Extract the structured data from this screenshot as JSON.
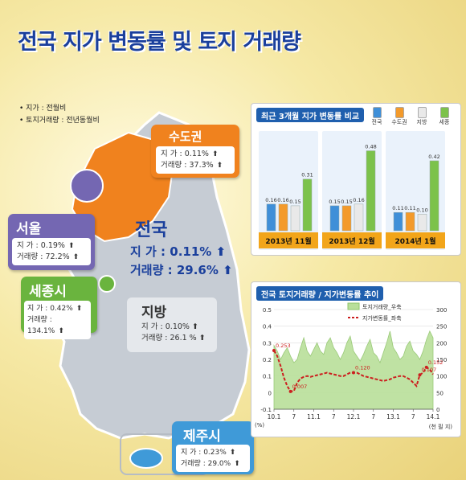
{
  "title": "전국 지가 변동률 및 토지 거래량",
  "notes": [
    "지가 : 전월비",
    "토지거래량 : 전년동월비"
  ],
  "regions": {
    "sudogwon": {
      "name": "수도권",
      "price_label": "지 가",
      "price": "0.11%",
      "volume_label": "거래량",
      "volume": "37.3%"
    },
    "seoul": {
      "name": "서울",
      "price_label": "지 가",
      "price": "0.19%",
      "volume_label": "거래량",
      "volume": "72.2%"
    },
    "sejong": {
      "name": "세종시",
      "price_label": "지 가",
      "price": "0.42%",
      "volume_label": "거래량",
      "volume": "134.1%"
    },
    "national": {
      "name": "전국",
      "price_label": "지 가",
      "price": "0.11%",
      "volume_label": "거래량",
      "volume": "29.6%"
    },
    "jibang": {
      "name": "지방",
      "price_label": "지 가",
      "price": "0.10%",
      "volume_label": "거래량",
      "volume": "26.1 %"
    },
    "jeju": {
      "name": "제주시",
      "price_label": "지 가",
      "price": "0.23%",
      "volume_label": "거래량",
      "volume": "29.0%"
    }
  },
  "arrow": "⬆",
  "colors": {
    "orange": "#f0821e",
    "purple": "#7467b2",
    "green": "#6ab43e",
    "blue": "#3f9ad8",
    "navy": "#1f5fae",
    "red": "#cc1f1f"
  },
  "chart_data": [
    {
      "type": "bar",
      "title": "최근 3개월 지가 변동률 비교",
      "categories": [
        "2013년 11월",
        "2013년 12월",
        "2014년 1월"
      ],
      "series": [
        {
          "name": "전국",
          "values": [
            0.16,
            0.15,
            0.11
          ],
          "color": "#3f8fd8"
        },
        {
          "name": "수도권",
          "values": [
            0.16,
            0.15,
            0.11
          ],
          "color": "#f39a2b"
        },
        {
          "name": "지방",
          "values": [
            0.15,
            0.16,
            0.1
          ],
          "color": "#e9e9e9"
        },
        {
          "name": "세종",
          "values": [
            0.31,
            0.48,
            0.42
          ],
          "color": "#7cc24b"
        }
      ],
      "value_labels": [
        [
          "0.16",
          "0.16",
          "0.15",
          "0.31"
        ],
        [
          "0.15",
          "0.15",
          "0.16",
          "0.48"
        ],
        [
          "0.11",
          "0.11",
          "0.10",
          "0.42"
        ]
      ],
      "ylim": [
        0,
        0.55
      ]
    },
    {
      "type": "line",
      "title": "전국 토지거래량 / 지가변동률 추이",
      "x_tick_labels": [
        "10.1",
        "7",
        "11.1",
        "7",
        "12.1",
        "7",
        "13.1",
        "7",
        "14.1"
      ],
      "x_unit": "(천 필 지)",
      "y_left": {
        "unit": "(%)",
        "ticks": [
          "0.5",
          "0.4",
          "0.3",
          "0.2",
          "0.1",
          "0",
          "-0.1"
        ],
        "lim": [
          -0.1,
          0.5
        ]
      },
      "y_right": {
        "ticks": [
          "300",
          "250",
          "200",
          "150",
          "100",
          "50",
          "0"
        ],
        "lim": [
          0,
          300
        ]
      },
      "series": [
        {
          "name": "토지거래량_우축",
          "axis": "right",
          "kind": "area",
          "color": "#b9df9a",
          "values": [
            192,
            175,
            150,
            170,
            185,
            160,
            140,
            150,
            185,
            215,
            175,
            160,
            180,
            200,
            175,
            165,
            200,
            215,
            185,
            170,
            150,
            170,
            200,
            220,
            175,
            160,
            145,
            165,
            190,
            210,
            170,
            160,
            140,
            170,
            200,
            235,
            185,
            170,
            150,
            160,
            190,
            205,
            175,
            165,
            150,
            175,
            210,
            235,
            215
          ]
        },
        {
          "name": "지가변동률_좌축",
          "axis": "left",
          "kind": "line",
          "color": "#cc1f1f",
          "values": [
            0.253,
            0.22,
            0.16,
            0.09,
            0.04,
            0.007,
            0.01,
            0.06,
            0.085,
            0.095,
            0.1,
            0.095,
            0.1,
            0.105,
            0.11,
            0.115,
            0.12,
            0.115,
            0.11,
            0.105,
            0.1,
            0.1,
            0.11,
            0.12,
            0.12,
            0.12,
            0.11,
            0.1,
            0.095,
            0.09,
            0.085,
            0.08,
            0.075,
            0.07,
            0.075,
            0.08,
            0.09,
            0.095,
            0.1,
            0.1,
            0.09,
            0.08,
            0.06,
            0.04,
            0.107,
            0.12,
            0.152,
            0.14,
            0.11
          ]
        }
      ],
      "annotations": [
        "0.253",
        "0.007",
        "0.120",
        "0.152",
        "0.107"
      ]
    }
  ]
}
